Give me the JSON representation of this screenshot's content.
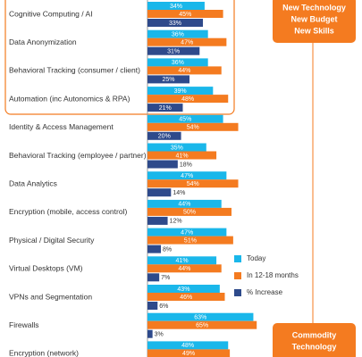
{
  "chart_data": {
    "type": "bar",
    "orientation": "horizontal",
    "categories": [
      "Cognitive Computing / AI",
      "Data Anonymization",
      "Behavioral Tracking (consumer / client)",
      "Automation (inc Autonomics & RPA)",
      "Identity & Access Management",
      "Behavioral Tracking (employee / partner)",
      "Data Analytics",
      "Encryption (mobile, access control)",
      "Physical / Digital Security",
      "Virtual Desktops (VM)",
      "VPNs and Segmentation",
      "Firewalls",
      "Encryption (network)"
    ],
    "series": [
      {
        "name": "Today",
        "color": "#1ab7ea",
        "values": [
          34,
          36,
          36,
          39,
          45,
          35,
          47,
          44,
          47,
          41,
          43,
          63,
          48
        ],
        "value_labels": [
          "34%",
          "36%",
          "36%",
          "39%",
          "45%",
          "35%",
          "47%",
          "44%",
          "47%",
          "41%",
          "43%",
          "63%",
          "48%"
        ]
      },
      {
        "name": "In 12-18 months",
        "color": "#f47b20",
        "values": [
          45,
          47,
          44,
          48,
          54,
          41,
          54,
          50,
          51,
          44,
          46,
          65,
          49
        ],
        "value_labels": [
          "45%",
          "47%",
          "44%",
          "48%",
          "54%",
          "41%",
          "54%",
          "50%",
          "51%",
          "44%",
          "46%",
          "65%",
          "49%"
        ]
      },
      {
        "name": "% Increase",
        "color": "#2e4a8b",
        "values": [
          33,
          31,
          25,
          21,
          20,
          18,
          14,
          12,
          8,
          7,
          6,
          3,
          null
        ],
        "value_labels": [
          "33%",
          "31%",
          "25%",
          "21%",
          "20%",
          "18%",
          "14%",
          "12%",
          "8%",
          "7%",
          "6%",
          "3%",
          null
        ]
      }
    ],
    "xlim": [
      0,
      100
    ],
    "callouts": [
      {
        "lines": [
          "New Technology",
          "New Budget",
          "New Skills"
        ],
        "color": "#f47b20"
      },
      {
        "lines": [
          "Commodity",
          "Technology"
        ],
        "color": "#f47b20"
      }
    ]
  }
}
